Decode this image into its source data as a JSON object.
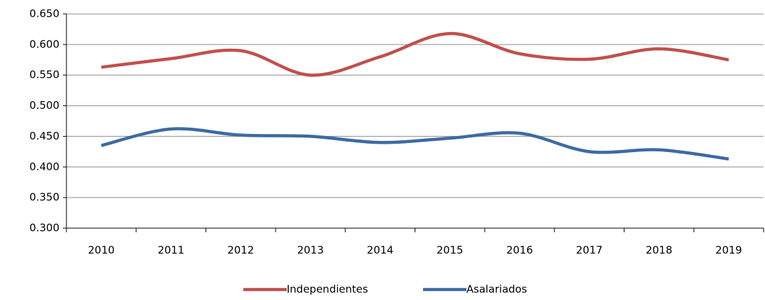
{
  "chart_data": {
    "type": "line",
    "categories": [
      "2010",
      "2011",
      "2012",
      "2013",
      "2014",
      "2015",
      "2016",
      "2017",
      "2018",
      "2019"
    ],
    "series": [
      {
        "name": "Independientes",
        "color": "#c0504d",
        "values": [
          0.563,
          0.577,
          0.59,
          0.55,
          0.58,
          0.618,
          0.585,
          0.576,
          0.593,
          0.575
        ]
      },
      {
        "name": "Asalariados",
        "color": "#3d6aa4",
        "values": [
          0.435,
          0.462,
          0.452,
          0.45,
          0.44,
          0.447,
          0.455,
          0.425,
          0.428,
          0.413
        ]
      }
    ],
    "ylim": [
      0.3,
      0.65
    ],
    "yticks": [
      {
        "value": 0.3,
        "label": "0.300"
      },
      {
        "value": 0.35,
        "label": "0.350"
      },
      {
        "value": 0.4,
        "label": "0.400"
      },
      {
        "value": 0.45,
        "label": "0.450"
      },
      {
        "value": 0.5,
        "label": "0.500"
      },
      {
        "value": 0.55,
        "label": "0.550"
      },
      {
        "value": 0.6,
        "label": "0.600"
      },
      {
        "value": 0.65,
        "label": "0.650"
      }
    ],
    "grid": true,
    "smooth": true,
    "legend": "bottom"
  }
}
